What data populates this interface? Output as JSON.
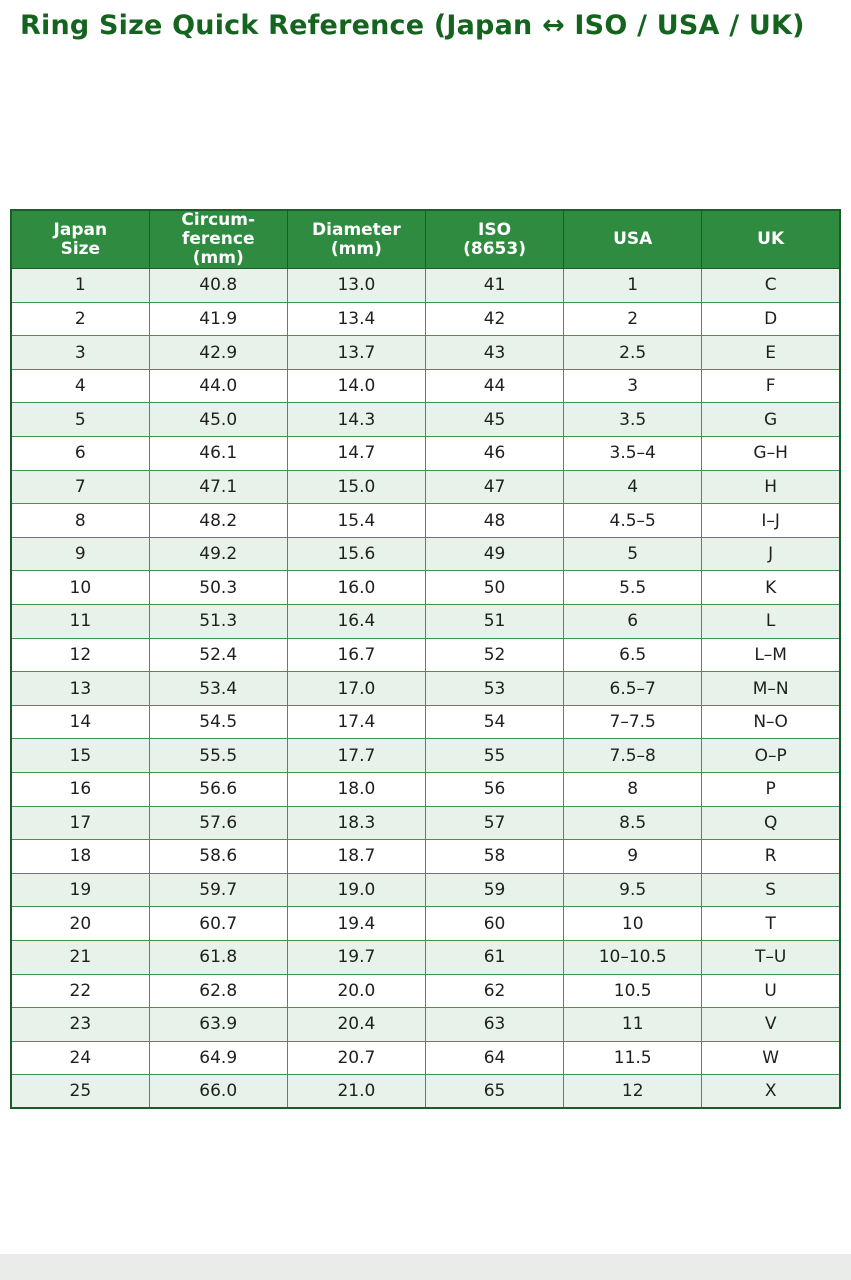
{
  "page": {
    "title": "Ring Size Quick Reference (Japan ↔ ISO / USA / UK)"
  },
  "colors": {
    "header_bg": "#2f8b3f",
    "header_text": "#ffffff",
    "title_text": "#14641f",
    "row_alt_bg": "#e7f3ea",
    "row_bg": "#ffffff",
    "grid": "#3e9450",
    "grid_dark": "#1d5c28",
    "cell_text": "#1f1f1f",
    "footer_bg": "#e9ece9"
  },
  "chart_data": {
    "type": "table",
    "title": "Ring Size Quick Reference (Japan ↔ ISO / USA / UK)",
    "columns": [
      "Japan\nSize",
      "Circum-\nference\n(mm)",
      "Diameter\n(mm)",
      "ISO\n(8653)",
      "USA",
      "UK"
    ],
    "rows": [
      [
        "1",
        "40.8",
        "13.0",
        "41",
        "1",
        "C"
      ],
      [
        "2",
        "41.9",
        "13.4",
        "42",
        "2",
        "D"
      ],
      [
        "3",
        "42.9",
        "13.7",
        "43",
        "2.5",
        "E"
      ],
      [
        "4",
        "44.0",
        "14.0",
        "44",
        "3",
        "F"
      ],
      [
        "5",
        "45.0",
        "14.3",
        "45",
        "3.5",
        "G"
      ],
      [
        "6",
        "46.1",
        "14.7",
        "46",
        "3.5–4",
        "G–H"
      ],
      [
        "7",
        "47.1",
        "15.0",
        "47",
        "4",
        "H"
      ],
      [
        "8",
        "48.2",
        "15.4",
        "48",
        "4.5–5",
        "I–J"
      ],
      [
        "9",
        "49.2",
        "15.6",
        "49",
        "5",
        "J"
      ],
      [
        "10",
        "50.3",
        "16.0",
        "50",
        "5.5",
        "K"
      ],
      [
        "11",
        "51.3",
        "16.4",
        "51",
        "6",
        "L"
      ],
      [
        "12",
        "52.4",
        "16.7",
        "52",
        "6.5",
        "L–M"
      ],
      [
        "13",
        "53.4",
        "17.0",
        "53",
        "6.5–7",
        "M–N"
      ],
      [
        "14",
        "54.5",
        "17.4",
        "54",
        "7–7.5",
        "N–O"
      ],
      [
        "15",
        "55.5",
        "17.7",
        "55",
        "7.5–8",
        "O–P"
      ],
      [
        "16",
        "56.6",
        "18.0",
        "56",
        "8",
        "P"
      ],
      [
        "17",
        "57.6",
        "18.3",
        "57",
        "8.5",
        "Q"
      ],
      [
        "18",
        "58.6",
        "18.7",
        "58",
        "9",
        "R"
      ],
      [
        "19",
        "59.7",
        "19.0",
        "59",
        "9.5",
        "S"
      ],
      [
        "20",
        "60.7",
        "19.4",
        "60",
        "10",
        "T"
      ],
      [
        "21",
        "61.8",
        "19.7",
        "61",
        "10–10.5",
        "T–U"
      ],
      [
        "22",
        "62.8",
        "20.0",
        "62",
        "10.5",
        "U"
      ],
      [
        "23",
        "63.9",
        "20.4",
        "63",
        "11",
        "V"
      ],
      [
        "24",
        "64.9",
        "20.7",
        "64",
        "11.5",
        "W"
      ],
      [
        "25",
        "66.0",
        "21.0",
        "65",
        "12",
        "X"
      ]
    ]
  }
}
